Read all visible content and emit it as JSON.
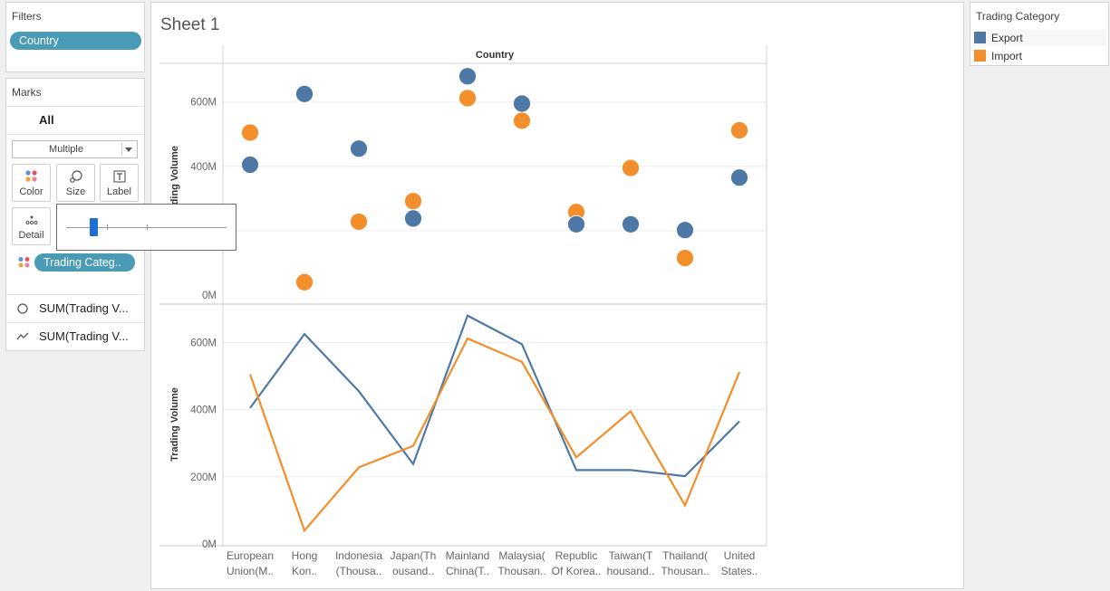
{
  "filters": {
    "title": "Filters",
    "pill": "Country"
  },
  "marks": {
    "title": "Marks",
    "all_label": "All",
    "mark_type": "Multiple",
    "buttons": {
      "color": "Color",
      "size": "Size",
      "label": "Label",
      "detail": "Detail"
    },
    "color_field_pill": "Trading Categ..",
    "measures": [
      "SUM(Trading V...",
      "SUM(Trading V..."
    ]
  },
  "size_slider": {
    "value": 0.17
  },
  "sheet": {
    "title": "Sheet 1"
  },
  "legend": {
    "title": "Trading Category",
    "items": [
      {
        "label": "Export",
        "color": "#4e79a7"
      },
      {
        "label": "Import",
        "color": "#f28e2b"
      }
    ]
  },
  "chart_data": {
    "type": "scatter+line",
    "column_header": "Country",
    "ylabel": "Trading Volume",
    "y_ticks": [
      "0M",
      "200M",
      "400M",
      "600M"
    ],
    "ylim": [
      0,
      720
    ],
    "categories": [
      [
        "European",
        "Union(M.."
      ],
      [
        "Hong",
        "Kon.."
      ],
      [
        "Indonesia",
        "(Thousa.."
      ],
      [
        "Japan(Th",
        "ousand.."
      ],
      [
        "Mainland",
        "China(T.."
      ],
      [
        "Malaysia(",
        "Thousan.."
      ],
      [
        "Republic",
        "Of Korea.."
      ],
      [
        "Taiwan(T",
        "housand.."
      ],
      [
        "Thailand(",
        "Thousan.."
      ],
      [
        "United",
        "States.."
      ]
    ],
    "series": [
      {
        "name": "Export",
        "color": "#4e79a7",
        "values": [
          405,
          625,
          455,
          238,
          680,
          595,
          220,
          220,
          202,
          365
        ]
      },
      {
        "name": "Import",
        "color": "#f28e2b",
        "values": [
          505,
          40,
          228,
          292,
          612,
          542,
          258,
          395,
          115,
          512
        ]
      }
    ],
    "panes": [
      {
        "mark": "circle",
        "y_ticks_shown": [
          "0M",
          "400M",
          "600M"
        ]
      },
      {
        "mark": "line",
        "y_ticks_shown": [
          "0M",
          "200M",
          "400M",
          "600M"
        ]
      }
    ],
    "grid": true
  }
}
